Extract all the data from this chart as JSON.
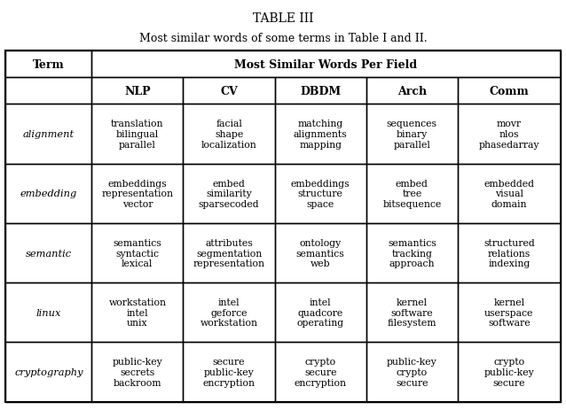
{
  "title": "TABLE III",
  "subtitle": "Most similar words of some terms in Table I and II.",
  "col_header_main": "Most Similar Words Per Field",
  "col_header_term": "Term",
  "fields": [
    "NLP",
    "CV",
    "DBDM",
    "Arch",
    "Comm"
  ],
  "rows": [
    {
      "term": "alignment",
      "NLP": "translation\nbilingual\nparallel",
      "CV": "facial\nshape\nlocalization",
      "DBDM": "matching\nalignments\nmapping",
      "Arch": "sequences\nbinary\nparallel",
      "Comm": "movr\nnlos\nphasedarray"
    },
    {
      "term": "embedding",
      "NLP": "embeddings\nrepresentation\nvector",
      "CV": "embed\nsimilarity\nsparsecoded",
      "DBDM": "embeddings\nstructure\nspace",
      "Arch": "embed\ntree\nbitsequence",
      "Comm": "embedded\nvisual\ndomain"
    },
    {
      "term": "semantic",
      "NLP": "semantics\nsyntactic\nlexical",
      "CV": "attributes\nsegmentation\nrepresentation",
      "DBDM": "ontology\nsemantics\nweb",
      "Arch": "semantics\ntracking\napproach",
      "Comm": "structured\nrelations\nindexing"
    },
    {
      "term": "linux",
      "NLP": "workstation\nintel\nunix",
      "CV": "intel\ngeforce\nworkstation",
      "DBDM": "intel\nquadcore\noperating",
      "Arch": "kernel\nsoftware\nfilesystem",
      "Comm": "kernel\nuserspace\nsoftware"
    },
    {
      "term": "cryptography",
      "NLP": "public-key\nsecrets\nbackroom",
      "CV": "secure\npublic-key\nencryption",
      "DBDM": "crypto\nsecure\nencryption",
      "Arch": "public-key\ncrypto\nsecure",
      "Comm": "crypto\npublic-key\nsecure"
    }
  ],
  "background_color": "#ffffff",
  "text_color": "#000000",
  "figsize": [
    6.38,
    4.64
  ],
  "dpi": 100
}
